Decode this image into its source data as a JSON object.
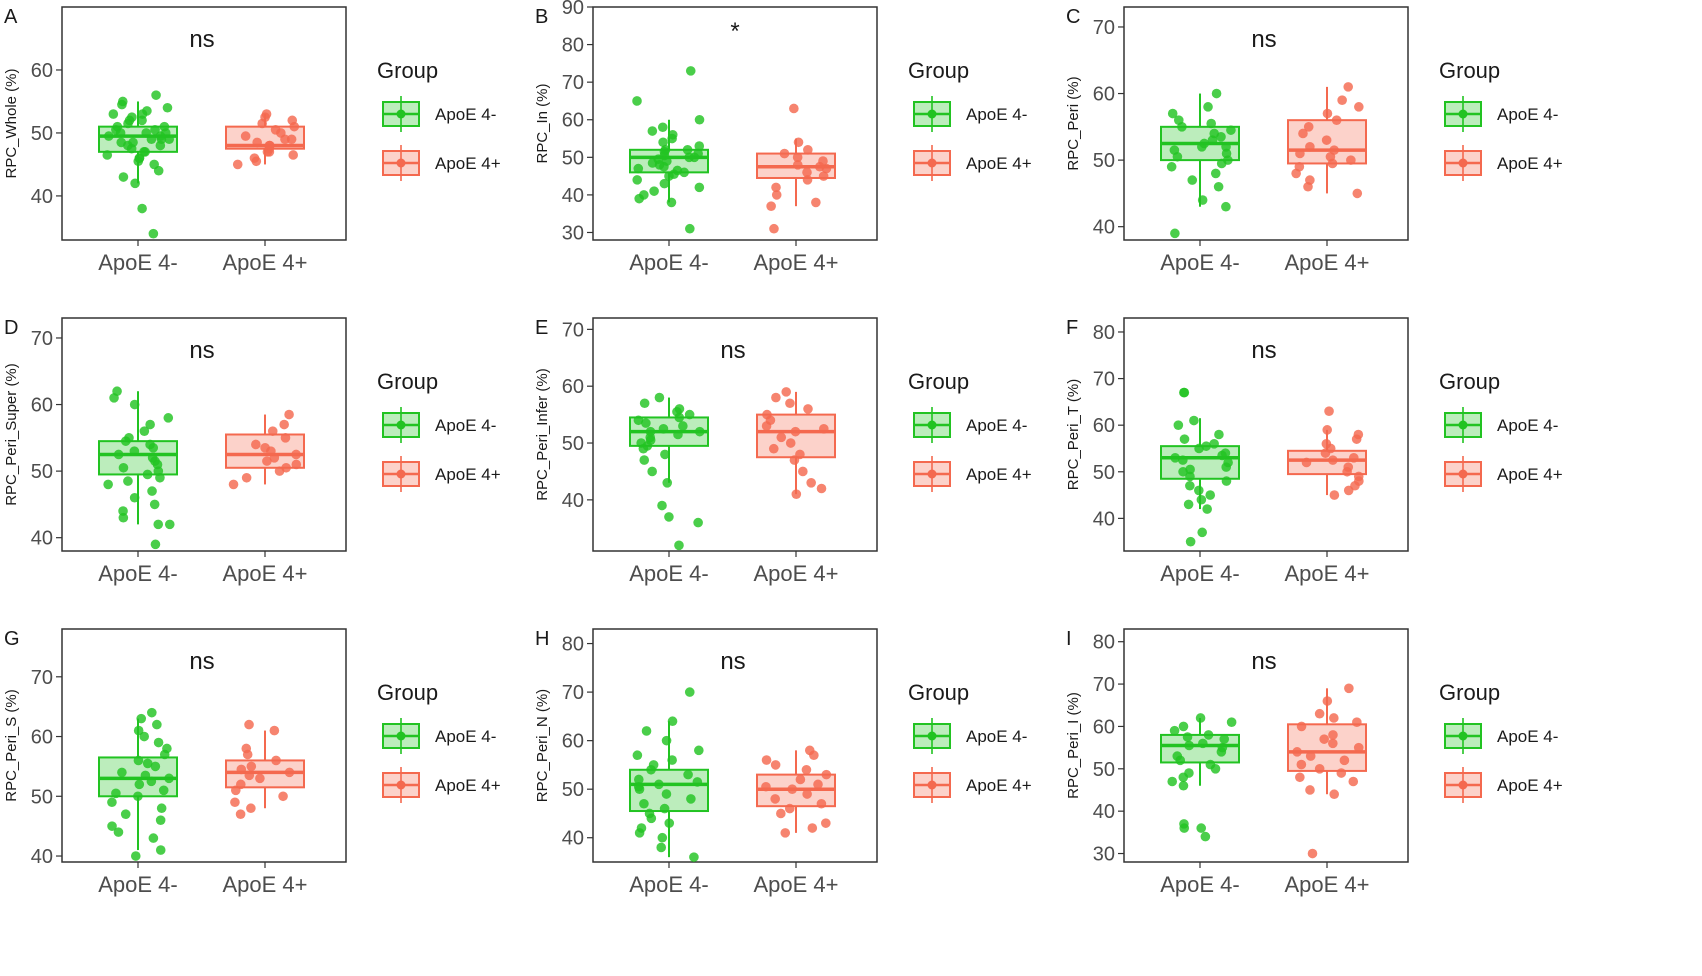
{
  "colors": {
    "group1": "#22c322",
    "group2": "#f4694f",
    "frame": "#333333",
    "text": "#1a1a1a",
    "tick": "#4d4d4d"
  },
  "legend": {
    "title": "Group",
    "items": [
      "ApoE 4-",
      "ApoE 4+"
    ]
  },
  "chart_data": [
    {
      "panel": "A",
      "type": "boxplot",
      "ylabel": "RPC_Whole (%)",
      "ylim": [
        33,
        70
      ],
      "yticks": [
        40,
        50,
        60
      ],
      "categories": [
        "ApoE 4-",
        "ApoE 4+"
      ],
      "significance": "ns",
      "series": [
        {
          "name": "ApoE 4-",
          "q1": 47,
          "median": 49.5,
          "q3": 51,
          "whisker_low": 42,
          "whisker_high": 55,
          "points": [
            34,
            38,
            42,
            43,
            44,
            45,
            45.5,
            46,
            46,
            46.5,
            47,
            47,
            47.5,
            48,
            48,
            48.5,
            48.5,
            49,
            49,
            49,
            49.5,
            49.5,
            50,
            50,
            50,
            50.5,
            50.5,
            51,
            51,
            51.5,
            52,
            52,
            52.5,
            53,
            53,
            53.5,
            54,
            54.5,
            55,
            56
          ]
        },
        {
          "name": "ApoE 4+",
          "q1": 47.5,
          "median": 48,
          "q3": 51,
          "whisker_low": 45,
          "whisker_high": 53,
          "points": [
            45,
            45.5,
            46,
            46.5,
            47,
            47,
            47.5,
            48,
            48,
            48.5,
            49,
            49,
            49.5,
            50,
            50.5,
            51,
            51.5,
            52,
            52.5,
            53
          ]
        }
      ]
    },
    {
      "panel": "B",
      "type": "boxplot",
      "ylabel": "RPC_In (%)",
      "ylim": [
        28,
        90
      ],
      "yticks": [
        30,
        40,
        50,
        60,
        70,
        80,
        90
      ],
      "categories": [
        "ApoE 4-",
        "ApoE 4+"
      ],
      "significance": "*",
      "series": [
        {
          "name": "ApoE 4-",
          "q1": 46,
          "median": 50,
          "q3": 52,
          "whisker_low": 38,
          "whisker_high": 60,
          "points": [
            31,
            38,
            39,
            40,
            41,
            42,
            43,
            44,
            45,
            45.5,
            46,
            46.5,
            47,
            47.5,
            48,
            48.5,
            49,
            49.5,
            50,
            50,
            50.5,
            51,
            51.5,
            52,
            52,
            53,
            54,
            55,
            56,
            57,
            58,
            60,
            65,
            73
          ]
        },
        {
          "name": "ApoE 4+",
          "q1": 44.5,
          "median": 47.5,
          "q3": 51,
          "whisker_low": 37,
          "whisker_high": 55,
          "points": [
            31,
            37,
            38,
            40,
            42,
            44,
            45,
            46,
            47,
            47.5,
            48,
            49,
            50,
            51,
            52,
            54,
            63
          ]
        }
      ]
    },
    {
      "panel": "C",
      "type": "boxplot",
      "ylabel": "RPC_Peri (%)",
      "ylim": [
        38,
        73
      ],
      "yticks": [
        40,
        50,
        60,
        70
      ],
      "categories": [
        "ApoE 4-",
        "ApoE 4+"
      ],
      "significance": "ns",
      "series": [
        {
          "name": "ApoE 4-",
          "q1": 50,
          "median": 52.5,
          "q3": 55,
          "whisker_low": 43,
          "whisker_high": 60,
          "points": [
            39,
            43,
            44,
            46,
            47,
            48,
            49,
            49.5,
            50,
            50.5,
            51,
            51.5,
            52,
            52,
            52.5,
            53,
            53.5,
            54,
            54.5,
            55,
            55.5,
            56,
            57,
            58,
            60
          ]
        },
        {
          "name": "ApoE 4+",
          "q1": 49.5,
          "median": 51.5,
          "q3": 56,
          "whisker_low": 45,
          "whisker_high": 61,
          "points": [
            45,
            46,
            47,
            48,
            49,
            49.5,
            50,
            50.5,
            51,
            51.5,
            52,
            53,
            54,
            55,
            56,
            57,
            58,
            59,
            61
          ]
        }
      ]
    },
    {
      "panel": "D",
      "type": "boxplot",
      "ylabel": "RPC_Peri_Super (%)",
      "ylim": [
        38,
        73
      ],
      "yticks": [
        40,
        50,
        60,
        70
      ],
      "categories": [
        "ApoE 4-",
        "ApoE 4+"
      ],
      "significance": "ns",
      "series": [
        {
          "name": "ApoE 4-",
          "q1": 49.5,
          "median": 52.5,
          "q3": 54.5,
          "whisker_low": 42,
          "whisker_high": 62,
          "points": [
            39,
            42,
            42,
            43,
            44,
            45,
            46,
            47,
            48,
            48.5,
            49,
            49.5,
            50,
            50.5,
            51,
            51.5,
            52,
            52.5,
            53,
            53.5,
            54,
            54.5,
            55,
            56,
            57,
            58,
            60,
            61,
            62
          ]
        },
        {
          "name": "ApoE 4+",
          "q1": 50.5,
          "median": 52.5,
          "q3": 55.5,
          "whisker_low": 48,
          "whisker_high": 58.5,
          "points": [
            48,
            49,
            50,
            50.5,
            51,
            51.5,
            52,
            52.5,
            53,
            53.5,
            54,
            55,
            56,
            57,
            58.5
          ]
        }
      ]
    },
    {
      "panel": "E",
      "type": "boxplot",
      "ylabel": "RPC_Peri_Infer (%)",
      "ylim": [
        31,
        72
      ],
      "yticks": [
        40,
        50,
        60,
        70
      ],
      "categories": [
        "ApoE 4-",
        "ApoE 4+"
      ],
      "significance": "ns",
      "series": [
        {
          "name": "ApoE 4-",
          "q1": 49.5,
          "median": 52,
          "q3": 54.5,
          "whisker_low": 43,
          "whisker_high": 58,
          "points": [
            32,
            36,
            37,
            39,
            43,
            45,
            47,
            48,
            49,
            49.5,
            50,
            50.5,
            51,
            51.5,
            52,
            52,
            52.5,
            53,
            53.5,
            54,
            54.5,
            55,
            55.5,
            56,
            57,
            58
          ]
        },
        {
          "name": "ApoE 4+",
          "q1": 47.5,
          "median": 52,
          "q3": 55,
          "whisker_low": 41,
          "whisker_high": 59,
          "points": [
            41,
            42,
            43,
            45,
            47,
            48,
            49,
            50,
            51,
            52,
            52.5,
            53,
            54,
            55,
            56,
            57,
            58,
            59
          ]
        }
      ]
    },
    {
      "panel": "F",
      "type": "boxplot",
      "ylabel": "RPC_Peri_T (%)",
      "ylim": [
        33,
        83
      ],
      "yticks": [
        40,
        50,
        60,
        70,
        80
      ],
      "categories": [
        "ApoE 4-",
        "ApoE 4+"
      ],
      "significance": "ns",
      "series": [
        {
          "name": "ApoE 4-",
          "q1": 48.5,
          "median": 53,
          "q3": 55.5,
          "whisker_low": 42,
          "whisker_high": 61.5,
          "points": [
            35,
            37,
            42,
            43,
            44,
            45,
            46,
            47,
            48,
            49,
            50,
            50.5,
            51,
            52,
            52.5,
            53,
            53.5,
            54,
            55,
            55.5,
            56,
            57,
            58,
            60,
            61,
            67,
            67
          ]
        },
        {
          "name": "ApoE 4+",
          "q1": 49.5,
          "median": 52.5,
          "q3": 54.5,
          "whisker_low": 45,
          "whisker_high": 59,
          "points": [
            45,
            46,
            47,
            48,
            49,
            50,
            51,
            52,
            52.5,
            53,
            54,
            55,
            56,
            57,
            58,
            59,
            63
          ]
        }
      ]
    },
    {
      "panel": "G",
      "type": "boxplot",
      "ylabel": "RPC_Peri_S (%)",
      "ylim": [
        39,
        78
      ],
      "yticks": [
        40,
        50,
        60,
        70
      ],
      "categories": [
        "ApoE 4-",
        "ApoE 4+"
      ],
      "significance": "ns",
      "series": [
        {
          "name": "ApoE 4-",
          "q1": 50,
          "median": 53,
          "q3": 56.5,
          "whisker_low": 41,
          "whisker_high": 63,
          "points": [
            40,
            41,
            43,
            44,
            45,
            46,
            47,
            48,
            49,
            50,
            50.5,
            51,
            52,
            52.5,
            53,
            53.5,
            54,
            55,
            55.5,
            56,
            57,
            58,
            59,
            60,
            61,
            62,
            63,
            64
          ]
        },
        {
          "name": "ApoE 4+",
          "q1": 51.5,
          "median": 54,
          "q3": 56,
          "whisker_low": 48,
          "whisker_high": 61,
          "points": [
            47,
            48,
            49,
            50,
            51,
            52,
            53,
            53.5,
            54,
            54.5,
            55,
            56,
            57,
            58,
            61,
            62
          ]
        }
      ]
    },
    {
      "panel": "H",
      "type": "boxplot",
      "ylabel": "RPC_Peri_N (%)",
      "ylim": [
        35,
        83
      ],
      "yticks": [
        40,
        50,
        60,
        70,
        80
      ],
      "categories": [
        "ApoE 4-",
        "ApoE 4+"
      ],
      "significance": "ns",
      "series": [
        {
          "name": "ApoE 4-",
          "q1": 45.5,
          "median": 51,
          "q3": 54,
          "whisker_low": 36,
          "whisker_high": 64,
          "points": [
            36,
            38,
            40,
            41,
            42,
            43,
            44,
            45,
            46,
            47,
            48,
            49,
            50,
            50.5,
            51,
            51.5,
            52,
            53,
            54,
            55,
            56,
            57,
            58,
            60,
            62,
            64,
            70
          ]
        },
        {
          "name": "ApoE 4+",
          "q1": 46.5,
          "median": 50,
          "q3": 53,
          "whisker_low": 41,
          "whisker_high": 58,
          "points": [
            41,
            42,
            43,
            45,
            46,
            47,
            48,
            49,
            50,
            50.5,
            51,
            52,
            53,
            54,
            55,
            56,
            57,
            58
          ]
        }
      ]
    },
    {
      "panel": "I",
      "type": "boxplot",
      "ylabel": "RPC_Peri_I (%)",
      "ylim": [
        28,
        83
      ],
      "yticks": [
        30,
        40,
        50,
        60,
        70,
        80
      ],
      "categories": [
        "ApoE 4-",
        "ApoE 4+"
      ],
      "significance": "ns",
      "series": [
        {
          "name": "ApoE 4-",
          "q1": 51.5,
          "median": 55.5,
          "q3": 58,
          "whisker_low": 46,
          "whisker_high": 62,
          "points": [
            34,
            36,
            36,
            37,
            46,
            47,
            48,
            49,
            50,
            51,
            52,
            53,
            54,
            55,
            55.5,
            56,
            57,
            57.5,
            58,
            59,
            60,
            61,
            62
          ]
        },
        {
          "name": "ApoE 4+",
          "q1": 49.5,
          "median": 54,
          "q3": 60.5,
          "whisker_low": 44,
          "whisker_high": 69,
          "points": [
            30,
            44,
            45,
            47,
            48,
            49,
            50,
            51,
            52,
            53,
            54,
            55,
            56,
            57,
            58,
            60,
            61,
            62,
            63,
            66,
            69
          ]
        }
      ]
    }
  ]
}
